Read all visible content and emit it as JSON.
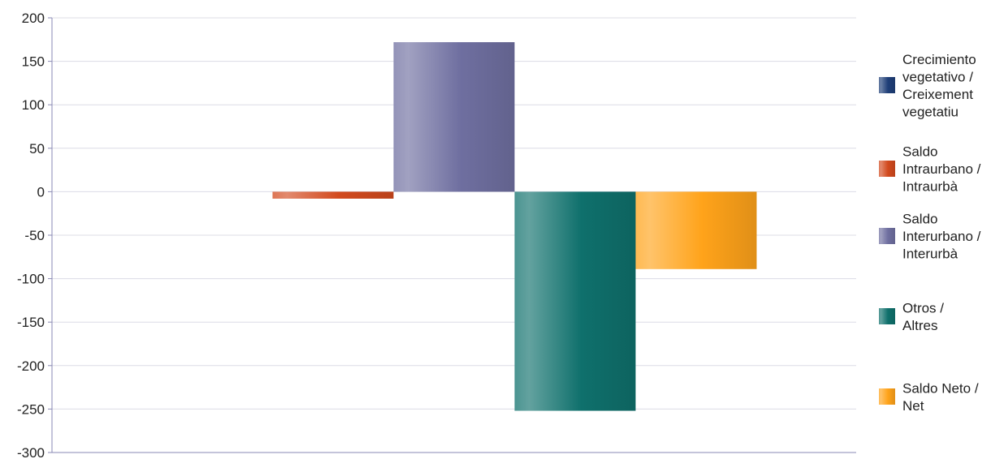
{
  "chart_data": {
    "type": "bar",
    "title": "",
    "xlabel": "",
    "ylabel": "",
    "ylim": [
      -300,
      200
    ],
    "yticks": [
      200,
      150,
      100,
      50,
      0,
      -50,
      -100,
      -150,
      -200,
      -250,
      -300
    ],
    "ytick_labels": [
      "200",
      "150",
      "100",
      "50",
      "0",
      "-50",
      "-100",
      "-150",
      "-200",
      "-250",
      "-300"
    ],
    "grid": true,
    "legend_position": "right",
    "categories": [
      ""
    ],
    "series": [
      {
        "name": "Crecimiento vegetativo / Creixement vegetatiu",
        "values": [
          0
        ],
        "color": "#1f3f78"
      },
      {
        "name": "Saldo Intraurbano / Intraurbà",
        "values": [
          -8
        ],
        "color": "#d24a1e"
      },
      {
        "name": "Saldo Interurbano / Interurbà",
        "values": [
          172
        ],
        "color": "#6f6fa0"
      },
      {
        "name": "Otros / Altres",
        "values": [
          -252
        ],
        "color": "#0f706c"
      },
      {
        "name": "Saldo Neto / Net",
        "values": [
          -89
        ],
        "color": "#ffa31a"
      }
    ],
    "legend": {
      "lines": [
        [
          "Crecimiento",
          "vegetativo /",
          "Creixement",
          "vegetatiu"
        ],
        [
          "Saldo",
          "Intraurbano /",
          "Intraurbà"
        ],
        [
          "Saldo",
          "Interurbano /",
          "Interurbà"
        ],
        [
          "Otros /",
          "Altres"
        ],
        [
          "Saldo Neto /",
          "Net"
        ]
      ]
    }
  }
}
